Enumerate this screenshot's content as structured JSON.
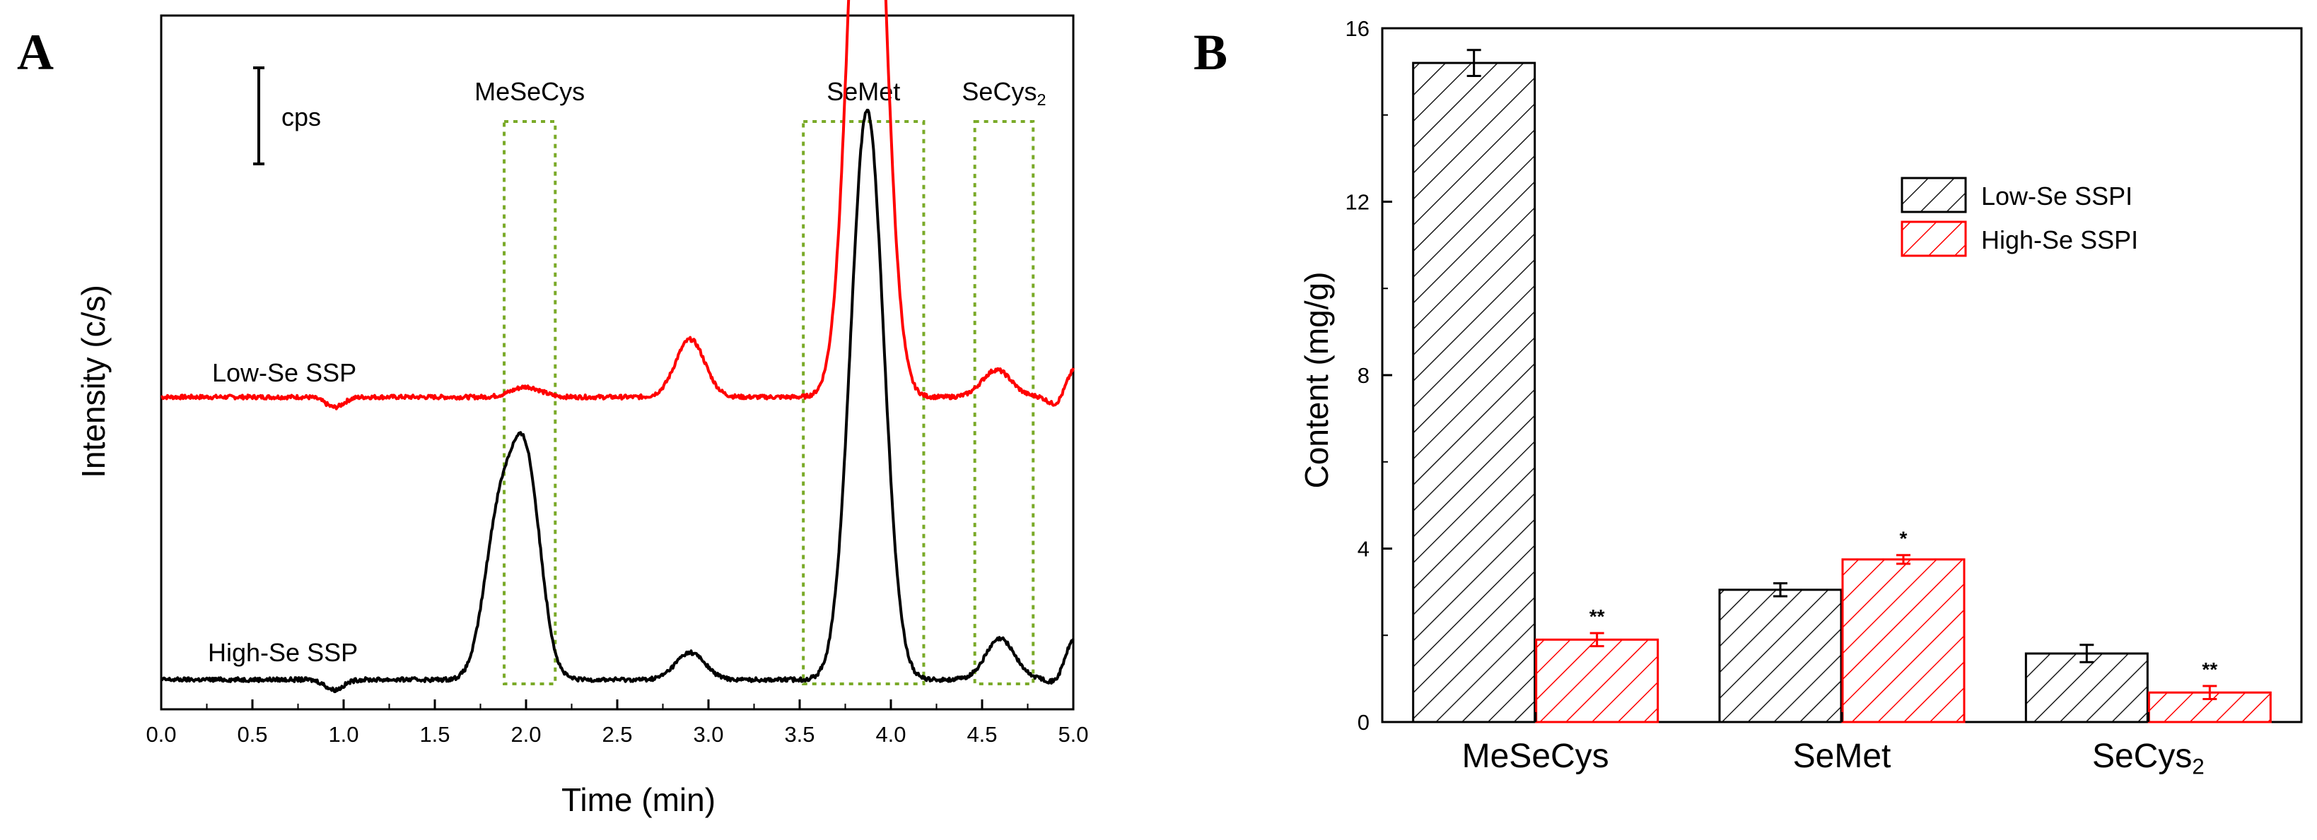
{
  "chart_data": [
    {
      "panel": "A",
      "type": "line",
      "xlabel": "Time (min)",
      "ylabel": "Intensity (c/s)",
      "xlim": [
        0.0,
        5.0
      ],
      "x_ticks": [
        "0.0",
        "0.5",
        "1.0",
        "1.5",
        "2.0",
        "2.5",
        "3.0",
        "3.5",
        "4.0",
        "4.5",
        "5.0"
      ],
      "y_ticks": "none",
      "scale_bar_label": "cps",
      "peak_windows": [
        {
          "label": "MeSeCys",
          "label_sub": "",
          "x_range": [
            1.88,
            2.16
          ]
        },
        {
          "label": "SeMet",
          "label_sub": "",
          "x_range": [
            3.52,
            4.18
          ]
        },
        {
          "label": "SeCys",
          "label_sub": "2",
          "x_range": [
            4.46,
            4.78
          ]
        }
      ],
      "series": [
        {
          "name": "Low-Se SSP",
          "color": "#ff0000",
          "baseline": 0.0,
          "dips": [
            {
              "x": 0.95,
              "depth": -0.03
            },
            {
              "x": 4.92,
              "depth": -0.07
            }
          ],
          "peaks": [
            {
              "x": 2.0,
              "height": 0.03
            },
            {
              "x": 2.9,
              "height": 0.17
            },
            {
              "x": 3.87,
              "height": 2.23
            },
            {
              "x": 4.58,
              "height": 0.08
            },
            {
              "x": 5.0,
              "height": 0.1
            }
          ]
        },
        {
          "name": "High-Se SSP",
          "color": "#000000",
          "baseline": 0.0,
          "dips": [
            {
              "x": 0.95,
              "depth": -0.03
            },
            {
              "x": 4.92,
              "depth": -0.07
            }
          ],
          "peaks": [
            {
              "x": 1.85,
              "height": 0.45
            },
            {
              "x": 2.0,
              "height": 0.62
            },
            {
              "x": 2.9,
              "height": 0.08
            },
            {
              "x": 3.87,
              "height": 1.68
            },
            {
              "x": 4.6,
              "height": 0.12
            },
            {
              "x": 5.0,
              "height": 0.14
            }
          ]
        }
      ]
    },
    {
      "panel": "B",
      "type": "bar",
      "xlabel": "",
      "ylabel": "Content (mg/g)",
      "ylim": [
        0,
        16
      ],
      "y_ticks": [
        0,
        4,
        8,
        12,
        16
      ],
      "categories": [
        {
          "label": "MeSeCys",
          "sub": ""
        },
        {
          "label": "SeMet",
          "sub": ""
        },
        {
          "label": "SeCys",
          "sub": "2"
        }
      ],
      "series": [
        {
          "name": "Low-Se SSPI",
          "color": "#000000",
          "values": [
            15.2,
            3.05,
            1.58
          ],
          "errors": [
            0.3,
            0.15,
            0.2
          ],
          "significance": [
            "",
            "",
            ""
          ]
        },
        {
          "name": "High-Se SSPI",
          "color": "#ff0000",
          "values": [
            1.9,
            3.75,
            0.68
          ],
          "errors": [
            0.15,
            0.1,
            0.15
          ],
          "significance": [
            "**",
            "*",
            "**"
          ]
        }
      ],
      "legend": "top-right"
    }
  ]
}
